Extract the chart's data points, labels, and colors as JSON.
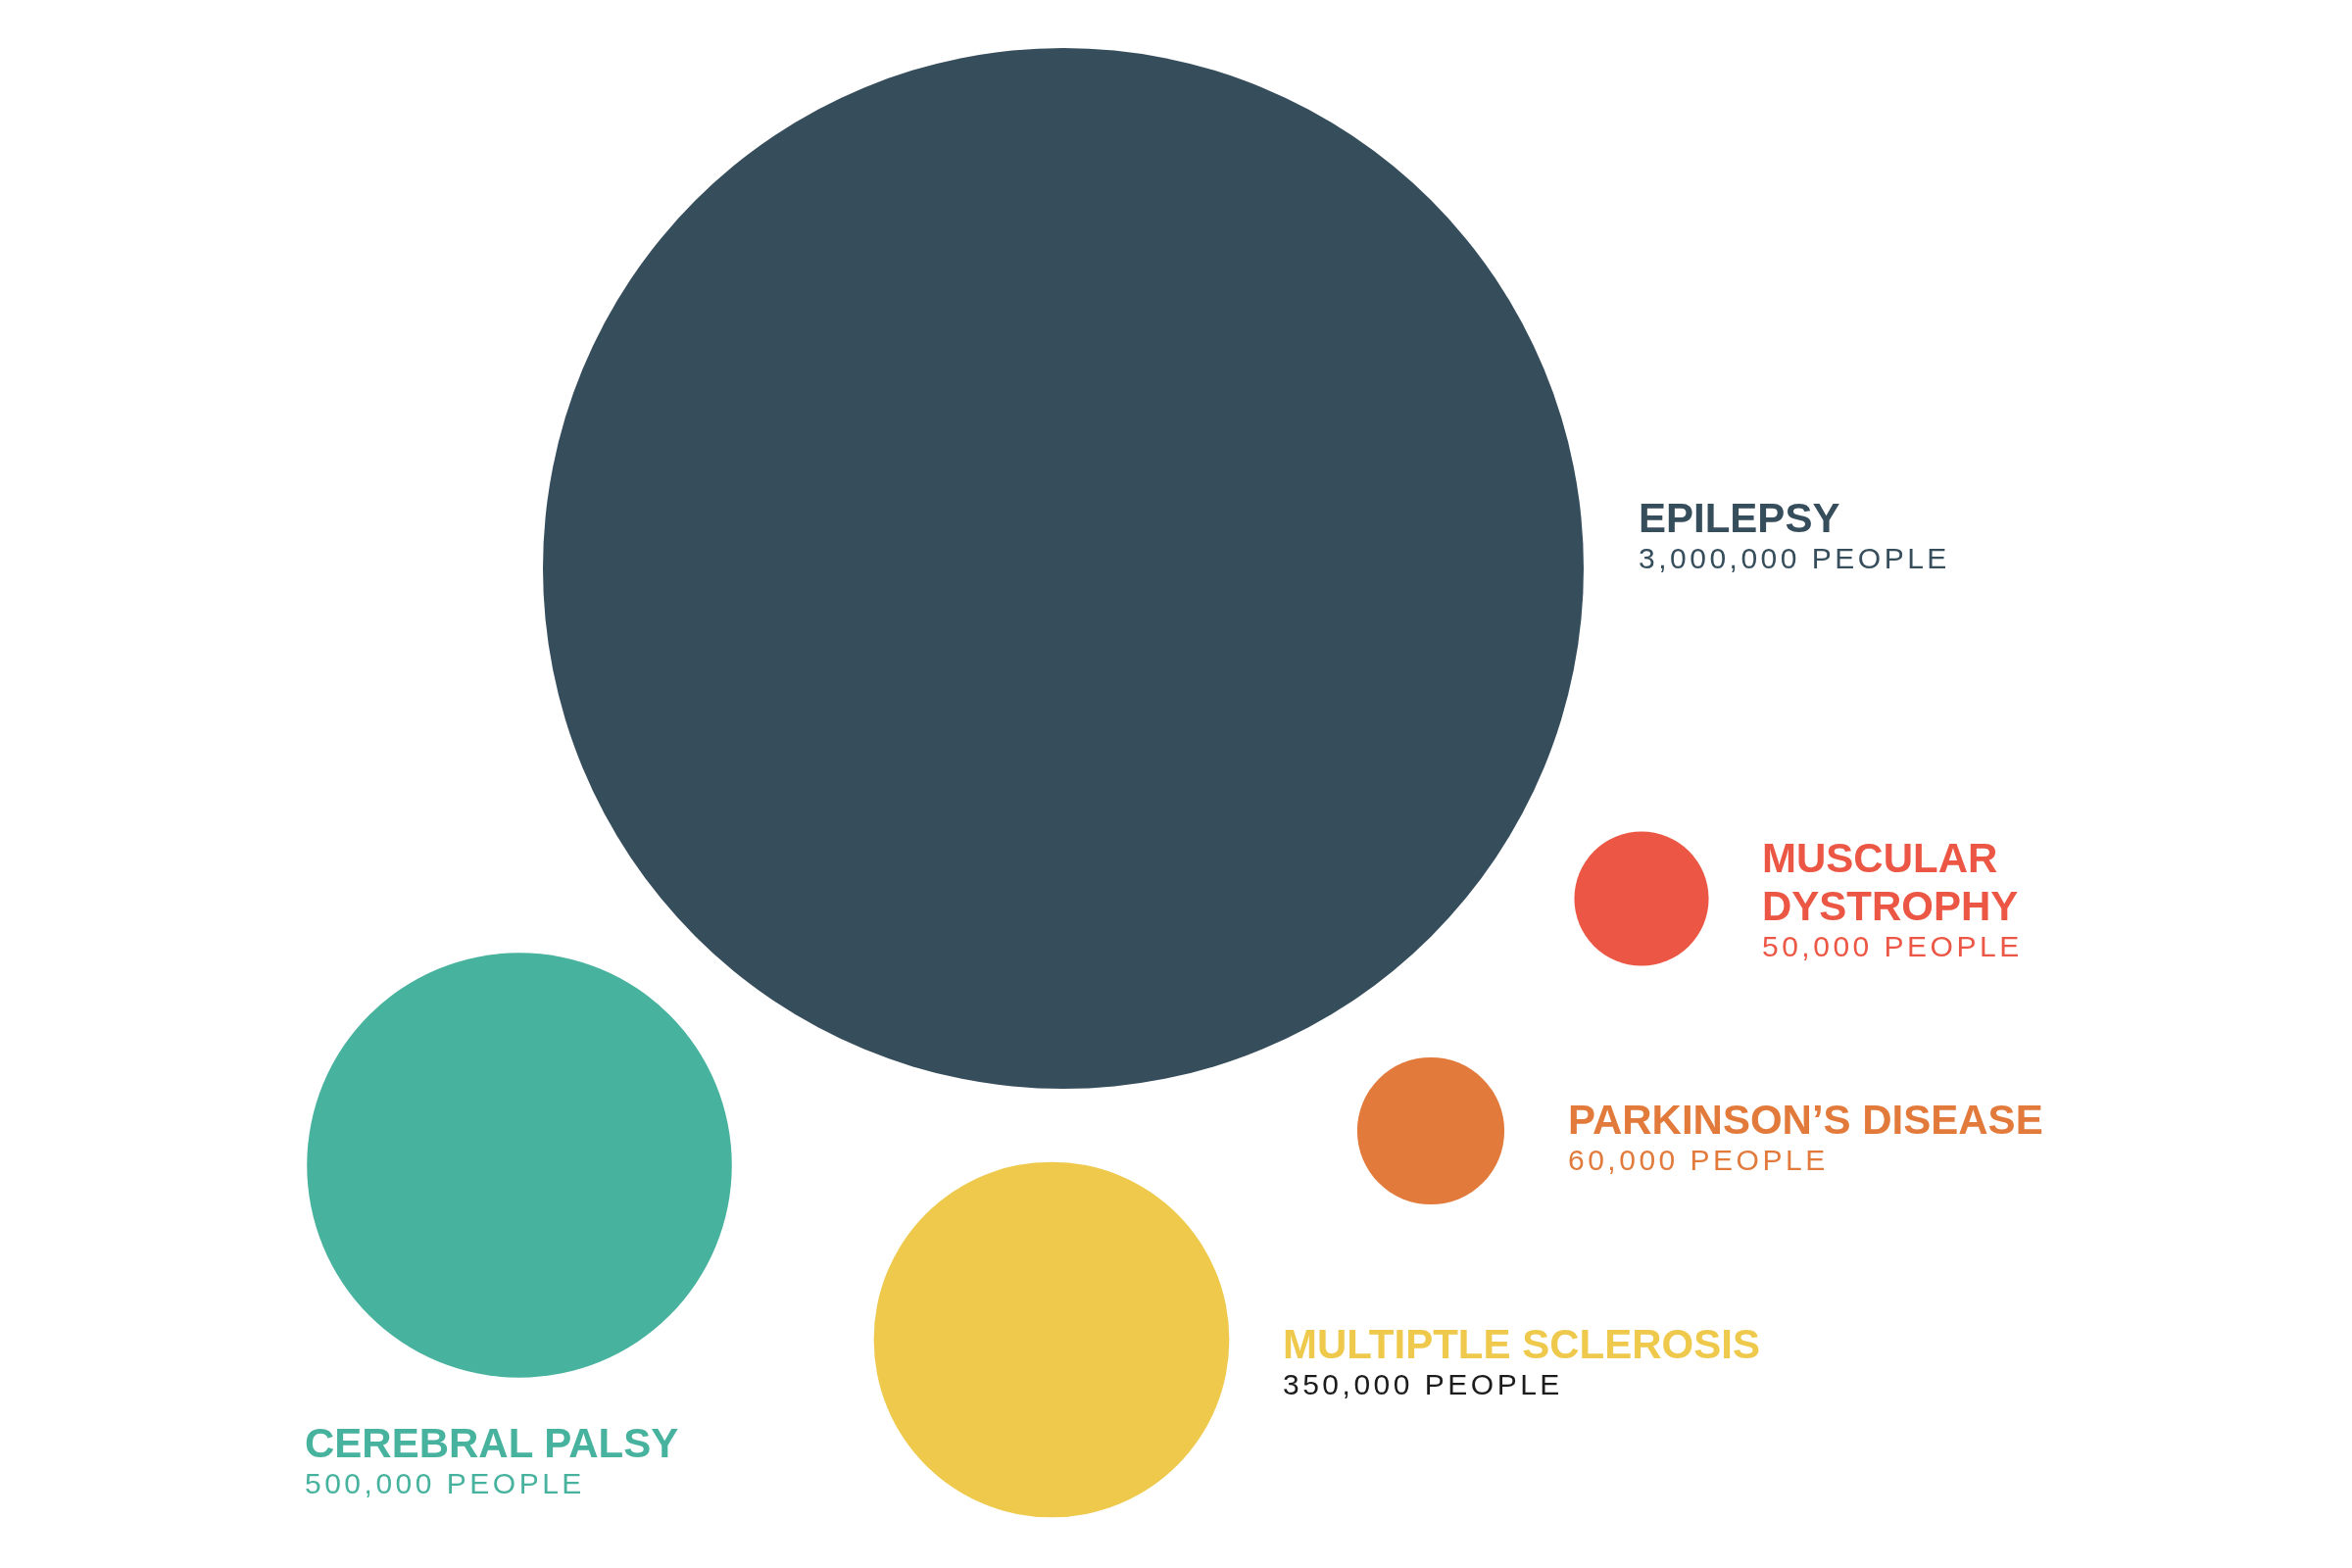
{
  "chart_data": {
    "type": "other",
    "categories": [
      "EPILEPSY",
      "MUSCULAR DYSTROPHY",
      "PARKINSON’S DISEASE",
      "MULTIPTLE SCLEROSIS",
      "CEREBRAL PALSY"
    ],
    "values": [
      3000000,
      50000,
      60000,
      350000,
      500000
    ],
    "colors": [
      "#364d5c",
      "#eb5744",
      "#e27a3c",
      "#eec94c",
      "#47b29e"
    ],
    "value_labels": [
      "3,000,000 PEOPLE",
      "50,000 PEOPLE",
      "60,000 PEOPLE",
      "350,000 PEOPLE",
      "500,000 PEOPLE"
    ]
  }
}
